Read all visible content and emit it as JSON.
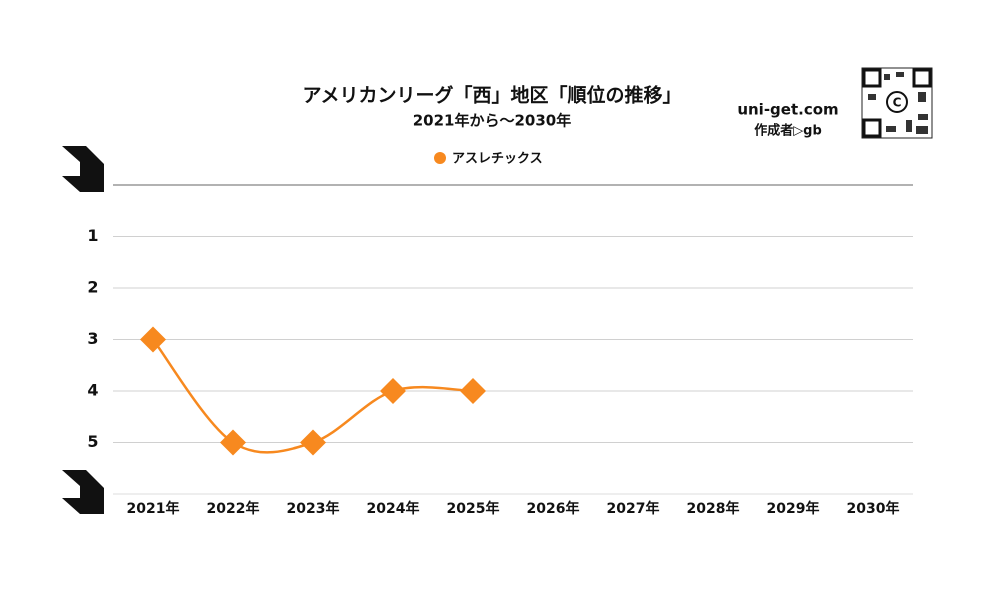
{
  "chart_data": {
    "type": "line",
    "title": "アメリカンリーグ「西」地区「順位の推移」",
    "subtitle": "2021年から～2030年",
    "watermark": "uni-get.com",
    "author": "作成者▷gb",
    "categories": [
      "2021年",
      "2022年",
      "2023年",
      "2024年",
      "2025年",
      "2026年",
      "2027年",
      "2028年",
      "2029年",
      "2030年"
    ],
    "series": [
      {
        "name": "アスレチックス",
        "color": "#f7891f",
        "values": [
          3,
          5,
          5,
          4,
          4,
          null,
          null,
          null,
          null,
          null
        ]
      }
    ],
    "ylim": [
      0,
      6
    ],
    "yticks": [
      1,
      2,
      3,
      4,
      5
    ],
    "y_inverted": true,
    "grid": true,
    "legend": "top"
  }
}
